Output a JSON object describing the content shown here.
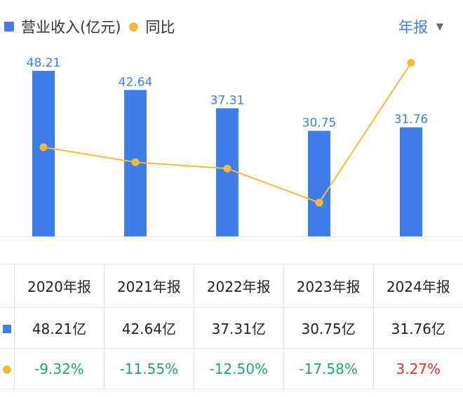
{
  "legend": {
    "revenue_label": "营业收入(亿元)",
    "yoy_label": "同比"
  },
  "period_selector": {
    "label": "年报",
    "icon": "dropdown-triangle-icon"
  },
  "colors": {
    "bar": "#3d7ee8",
    "line": "#fbb93a",
    "positive": "#e03131",
    "negative": "#1ba96a",
    "accent_text": "#3d7ee8"
  },
  "chart_data": {
    "type": "bar",
    "categories": [
      "2020年报",
      "2021年报",
      "2022年报",
      "2023年报",
      "2024年报"
    ],
    "series": [
      {
        "name": "营业收入(亿元)",
        "type": "bar",
        "values": [
          48.21,
          42.64,
          37.31,
          30.75,
          31.76
        ],
        "value_labels": [
          "48.21",
          "42.64",
          "37.31",
          "30.75",
          "31.76"
        ]
      },
      {
        "name": "同比",
        "type": "line",
        "values": [
          -9.32,
          -11.55,
          -12.5,
          -17.58,
          3.27
        ]
      }
    ],
    "ylim_bar": [
      0,
      48.21
    ],
    "ylim_line": [
      -20,
      5
    ],
    "grid": false,
    "legend_position": "top-left"
  },
  "table": {
    "headers": [
      "2020年报",
      "2021年报",
      "2022年报",
      "2023年报",
      "2024年报"
    ],
    "revenue_row": [
      "48.21亿",
      "42.64亿",
      "37.31亿",
      "30.75亿",
      "31.76亿"
    ],
    "yoy_row": [
      "-9.32%",
      "-11.55%",
      "-12.50%",
      "-17.58%",
      "3.27%"
    ]
  }
}
